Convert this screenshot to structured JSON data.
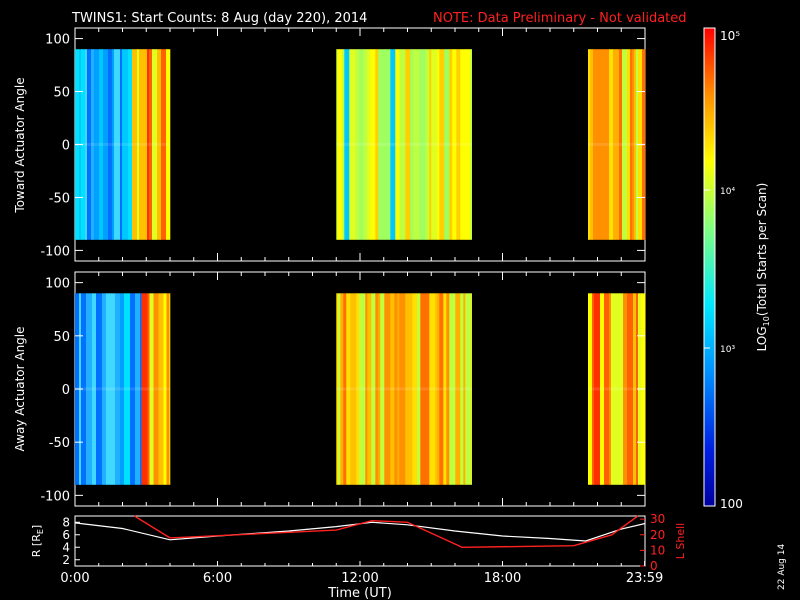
{
  "header": {
    "title": "TWINS1: Start Counts:  8 Aug (day 220), 2014",
    "note": "NOTE: Data Preliminary - Not validated"
  },
  "colorbar": {
    "label_prefix": "LOG",
    "label_sub": "10",
    "label_suffix": "(Total Starts per Scan)",
    "ticks": [
      "10⁵",
      "10⁴",
      "10³",
      "100"
    ],
    "range": [
      100,
      100000
    ],
    "scale": "log",
    "colors": [
      "#0000a0",
      "#0060ff",
      "#00e0ff",
      "#a0ff60",
      "#ffff00",
      "#ff9000",
      "#ff0000"
    ]
  },
  "footer": {
    "date_stamp": "22 Aug 14",
    "xlabel": "Time (UT)"
  },
  "chart_data": [
    {
      "type": "heatmap",
      "ylabel": "Toward Actuator Angle",
      "ylim": [
        -110,
        110
      ],
      "yticks": [
        "100",
        "50",
        "0",
        "-50",
        "-100"
      ],
      "xlim": [
        0,
        24
      ],
      "data_y_range": [
        -90,
        90
      ],
      "segments": [
        {
          "x": [
            0.0,
            2.4
          ],
          "level": "low"
        },
        {
          "x": [
            2.4,
            4.0
          ],
          "level": "high"
        },
        {
          "x": [
            11.0,
            16.7
          ],
          "level": "medium"
        },
        {
          "x": [
            21.6,
            24.0
          ],
          "level": "medium-high"
        }
      ]
    },
    {
      "type": "heatmap",
      "ylabel": "Away Actuator Angle",
      "ylim": [
        -110,
        110
      ],
      "yticks": [
        "100",
        "50",
        "0",
        "-50",
        "-100"
      ],
      "xlim": [
        0,
        24
      ],
      "data_y_range": [
        -90,
        90
      ],
      "segments": [
        {
          "x": [
            0.0,
            2.8
          ],
          "level": "low"
        },
        {
          "x": [
            2.8,
            4.0
          ],
          "level": "high"
        },
        {
          "x": [
            11.0,
            16.7
          ],
          "level": "medium-high"
        },
        {
          "x": [
            21.6,
            24.0
          ],
          "level": "high"
        }
      ]
    },
    {
      "type": "line",
      "ylabel_left": "R [R",
      "ylabel_left_sub": "E",
      "ylabel_left_end": "]",
      "ylabel_right": "L Shell",
      "ylim_left": [
        1,
        9
      ],
      "yticks_left": [
        "8",
        "6",
        "4",
        "2"
      ],
      "ylim_right": [
        0,
        32
      ],
      "yticks_right": [
        "30",
        "20",
        "10",
        "0"
      ],
      "xticks": [
        "0:00",
        "6:00",
        "12:00",
        "18:00",
        "23:59"
      ],
      "series": [
        {
          "axis": "left",
          "color": "#ffffff",
          "x": [
            0,
            2,
            4,
            6,
            9,
            11,
            12.5,
            14,
            16,
            18,
            20,
            21.5,
            23,
            24
          ],
          "y": [
            7.9,
            7.0,
            5.2,
            5.8,
            6.6,
            7.3,
            8.0,
            7.6,
            6.6,
            5.8,
            5.4,
            5.0,
            6.9,
            7.8
          ]
        },
        {
          "axis": "right",
          "color": "#ff2020",
          "x": [
            2.5,
            4.0,
            11.0,
            12.5,
            14.0,
            16.3,
            21.0,
            22.6,
            23.7
          ],
          "y": [
            32,
            18,
            23,
            29,
            28,
            12,
            13,
            20,
            32
          ]
        }
      ]
    }
  ]
}
